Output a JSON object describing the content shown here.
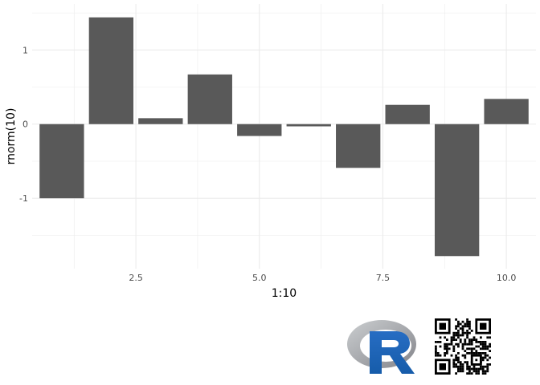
{
  "chart_data": {
    "type": "bar",
    "x": [
      1,
      2,
      3,
      4,
      5,
      6,
      7,
      8,
      9,
      10
    ],
    "values": [
      -1.0,
      1.44,
      0.08,
      0.67,
      -0.16,
      -0.03,
      -0.59,
      0.26,
      -1.78,
      0.34
    ],
    "xlabel": "1:10",
    "ylabel": "rnorm(10)",
    "xlim": [
      0.4,
      10.6
    ],
    "ylim": [
      -1.95,
      1.62
    ],
    "x_ticks": [
      2.5,
      5.0,
      7.5,
      10.0
    ],
    "x_tick_labels": [
      "2.5",
      "5.0",
      "7.5",
      "10.0"
    ],
    "y_ticks": [
      -1,
      0,
      1
    ],
    "y_tick_labels": [
      "-1",
      "0",
      "1"
    ],
    "bar_color": "#595959",
    "grid_color": "#ebebeb",
    "grid": true,
    "legend": "none"
  },
  "logos": {
    "r_logo": "r-logo-icon",
    "qr_code": "qr-code-icon",
    "r_blue": "#2066b8",
    "r_ring_gray": "#9ea1a6"
  }
}
